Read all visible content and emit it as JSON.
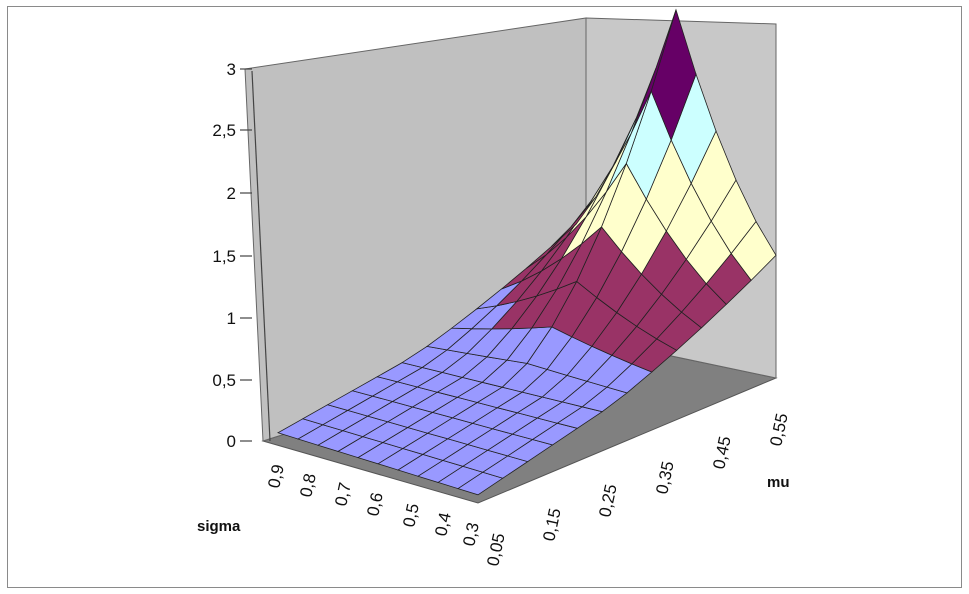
{
  "chart_data": {
    "type": "surface",
    "title": "",
    "x_axis": {
      "label": "mu",
      "ticks": [
        "0,05",
        "0,15",
        "0,25",
        "0,35",
        "0,45",
        "0,55"
      ]
    },
    "y_axis": {
      "label": "sigma",
      "ticks": [
        "0,3",
        "0,4",
        "0,5",
        "0,6",
        "0,7",
        "0,8",
        "0,9"
      ]
    },
    "z_axis": {
      "label": "",
      "ticks": [
        "0",
        "0,5",
        "1",
        "1,5",
        "2",
        "2,5",
        "3"
      ],
      "range": [
        0,
        3
      ]
    },
    "bands": [
      {
        "range": [
          0,
          0.5
        ],
        "color": "#9999ff"
      },
      {
        "range": [
          0.5,
          1
        ],
        "color": "#993366"
      },
      {
        "range": [
          1,
          1.5
        ],
        "color": "#ffffcc"
      },
      {
        "range": [
          1.5,
          2
        ],
        "color": "#ccffff"
      },
      {
        "range": [
          2,
          2.5
        ],
        "color": "#660066"
      },
      {
        "range": [
          2.5,
          3
        ],
        "color": "#ff8080"
      }
    ],
    "wall_color": "#c0c0c0",
    "floor_color": "#808080",
    "grid": false,
    "legend": false
  }
}
